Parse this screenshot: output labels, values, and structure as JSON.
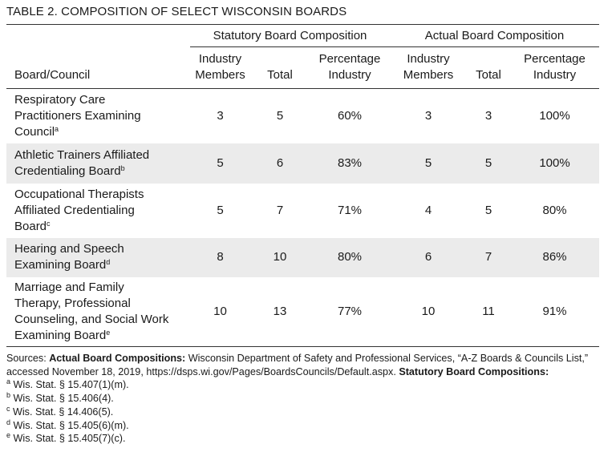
{
  "title": "TABLE 2. COMPOSITION OF SELECT WISCONSIN BOARDS",
  "group_headers": [
    "Statutory Board Composition",
    "Actual Board Composition"
  ],
  "column_headers": [
    "Board/Council",
    "Industry Members",
    "Total",
    "Percentage Industry",
    "Industry Members",
    "Total",
    "Percentage Industry"
  ],
  "rows": [
    {
      "name": "Respiratory Care Practitioners Examining Council",
      "note": "a",
      "cells": [
        3,
        5,
        "60%",
        3,
        3,
        "100%"
      ]
    },
    {
      "name": "Athletic Trainers Affiliated Credentialing Board",
      "note": "b",
      "cells": [
        5,
        6,
        "83%",
        5,
        5,
        "100%"
      ]
    },
    {
      "name": "Occupational Therapists Affiliated Credentialing Board",
      "note": "c",
      "cells": [
        5,
        7,
        "71%",
        4,
        5,
        "80%"
      ]
    },
    {
      "name": "Hearing and Speech Examining Board",
      "note": "d",
      "cells": [
        8,
        10,
        "80%",
        6,
        7,
        "86%"
      ]
    },
    {
      "name": "Marriage and Family Therapy, Professional Counseling, and Social Work Examining Board",
      "note": "e",
      "cells": [
        10,
        13,
        "77%",
        10,
        11,
        "91%"
      ]
    }
  ],
  "sources": {
    "label": "Sources:",
    "actual_heading": "Actual Board Compositions:",
    "actual_text": "Wisconsin Department of Safety and Professional Services, “A-Z Boards & Councils List,” accessed November 18, 2019, https://dsps.wi.gov/Pages/BoardsCouncils/Default.aspx.",
    "statutory_heading": "Statutory Board Compositions:"
  },
  "notes": [
    {
      "mark": "a",
      "text": "Wis. Stat. § 15.407(1)(m)."
    },
    {
      "mark": "b",
      "text": "Wis. Stat. § 15.406(4)."
    },
    {
      "mark": "c",
      "text": "Wis. Stat. § 14.406(5)."
    },
    {
      "mark": "d",
      "text": "Wis. Stat. § 15.405(6)(m)."
    },
    {
      "mark": "e",
      "text": "Wis. Stat. § 15.405(7)(c)."
    }
  ]
}
